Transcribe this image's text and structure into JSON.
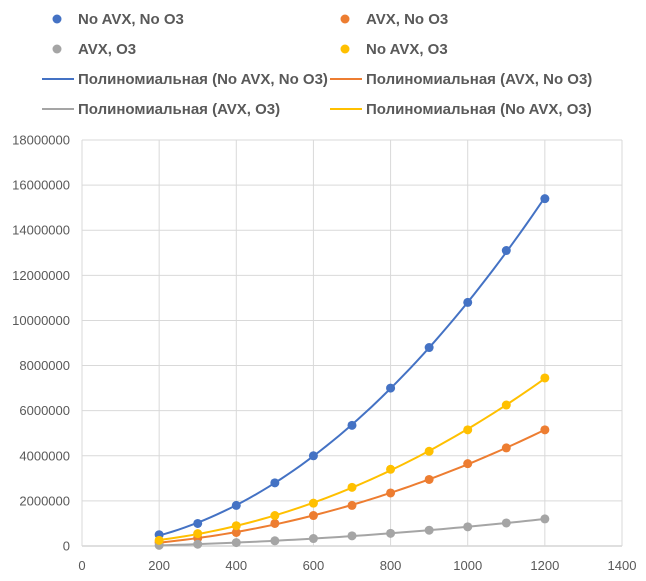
{
  "chart_data": {
    "type": "scatter",
    "title": "",
    "xlabel": "",
    "ylabel": "",
    "xlim": [
      0,
      1400
    ],
    "ylim": [
      0,
      18000000
    ],
    "x_ticks": [
      "0",
      "200",
      "400",
      "600",
      "800",
      "1000",
      "1200",
      "1400"
    ],
    "y_ticks": [
      "0",
      "2000000",
      "4000000",
      "6000000",
      "8000000",
      "10000000",
      "12000000",
      "14000000",
      "16000000",
      "18000000"
    ],
    "grid": true,
    "legend_position": "top",
    "series": [
      {
        "name": "No AVX, No O3",
        "color": "#4472C4",
        "x": [
          200,
          300,
          400,
          500,
          600,
          700,
          800,
          900,
          1000,
          1100,
          1200
        ],
        "y": [
          500000,
          1000000,
          1800000,
          2800000,
          4000000,
          5350000,
          7000000,
          8800000,
          10800000,
          13100000,
          15400000
        ]
      },
      {
        "name": "AVX, No O3",
        "color": "#ED7D31",
        "x": [
          200,
          300,
          400,
          500,
          600,
          700,
          800,
          900,
          1000,
          1100,
          1200
        ],
        "y": [
          150000,
          350000,
          600000,
          1000000,
          1350000,
          1800000,
          2350000,
          2950000,
          3650000,
          4350000,
          5150000
        ]
      },
      {
        "name": "AVX, O3",
        "color": "#A5A5A5",
        "x": [
          200,
          300,
          400,
          500,
          600,
          700,
          800,
          900,
          1000,
          1100,
          1200
        ],
        "y": [
          30000,
          80000,
          150000,
          230000,
          330000,
          450000,
          560000,
          700000,
          850000,
          1020000,
          1200000
        ]
      },
      {
        "name": "No AVX, O3",
        "color": "#FFC000",
        "x": [
          200,
          300,
          400,
          500,
          600,
          700,
          800,
          900,
          1000,
          1100,
          1200
        ],
        "y": [
          250000,
          550000,
          900000,
          1350000,
          1900000,
          2600000,
          3400000,
          4200000,
          5150000,
          6250000,
          7450000
        ]
      }
    ],
    "trendlines": [
      {
        "name": "Полиномиальная (No AVX, No O3)",
        "color": "#4472C4",
        "series_index": 0
      },
      {
        "name": "Полиномиальная (AVX, No O3)",
        "color": "#ED7D31",
        "series_index": 1
      },
      {
        "name": "Полиномиальная (AVX, O3)",
        "color": "#A5A5A5",
        "series_index": 2
      },
      {
        "name": "Полиномиальная (No AVX, O3)",
        "color": "#FFC000",
        "series_index": 3
      }
    ]
  }
}
